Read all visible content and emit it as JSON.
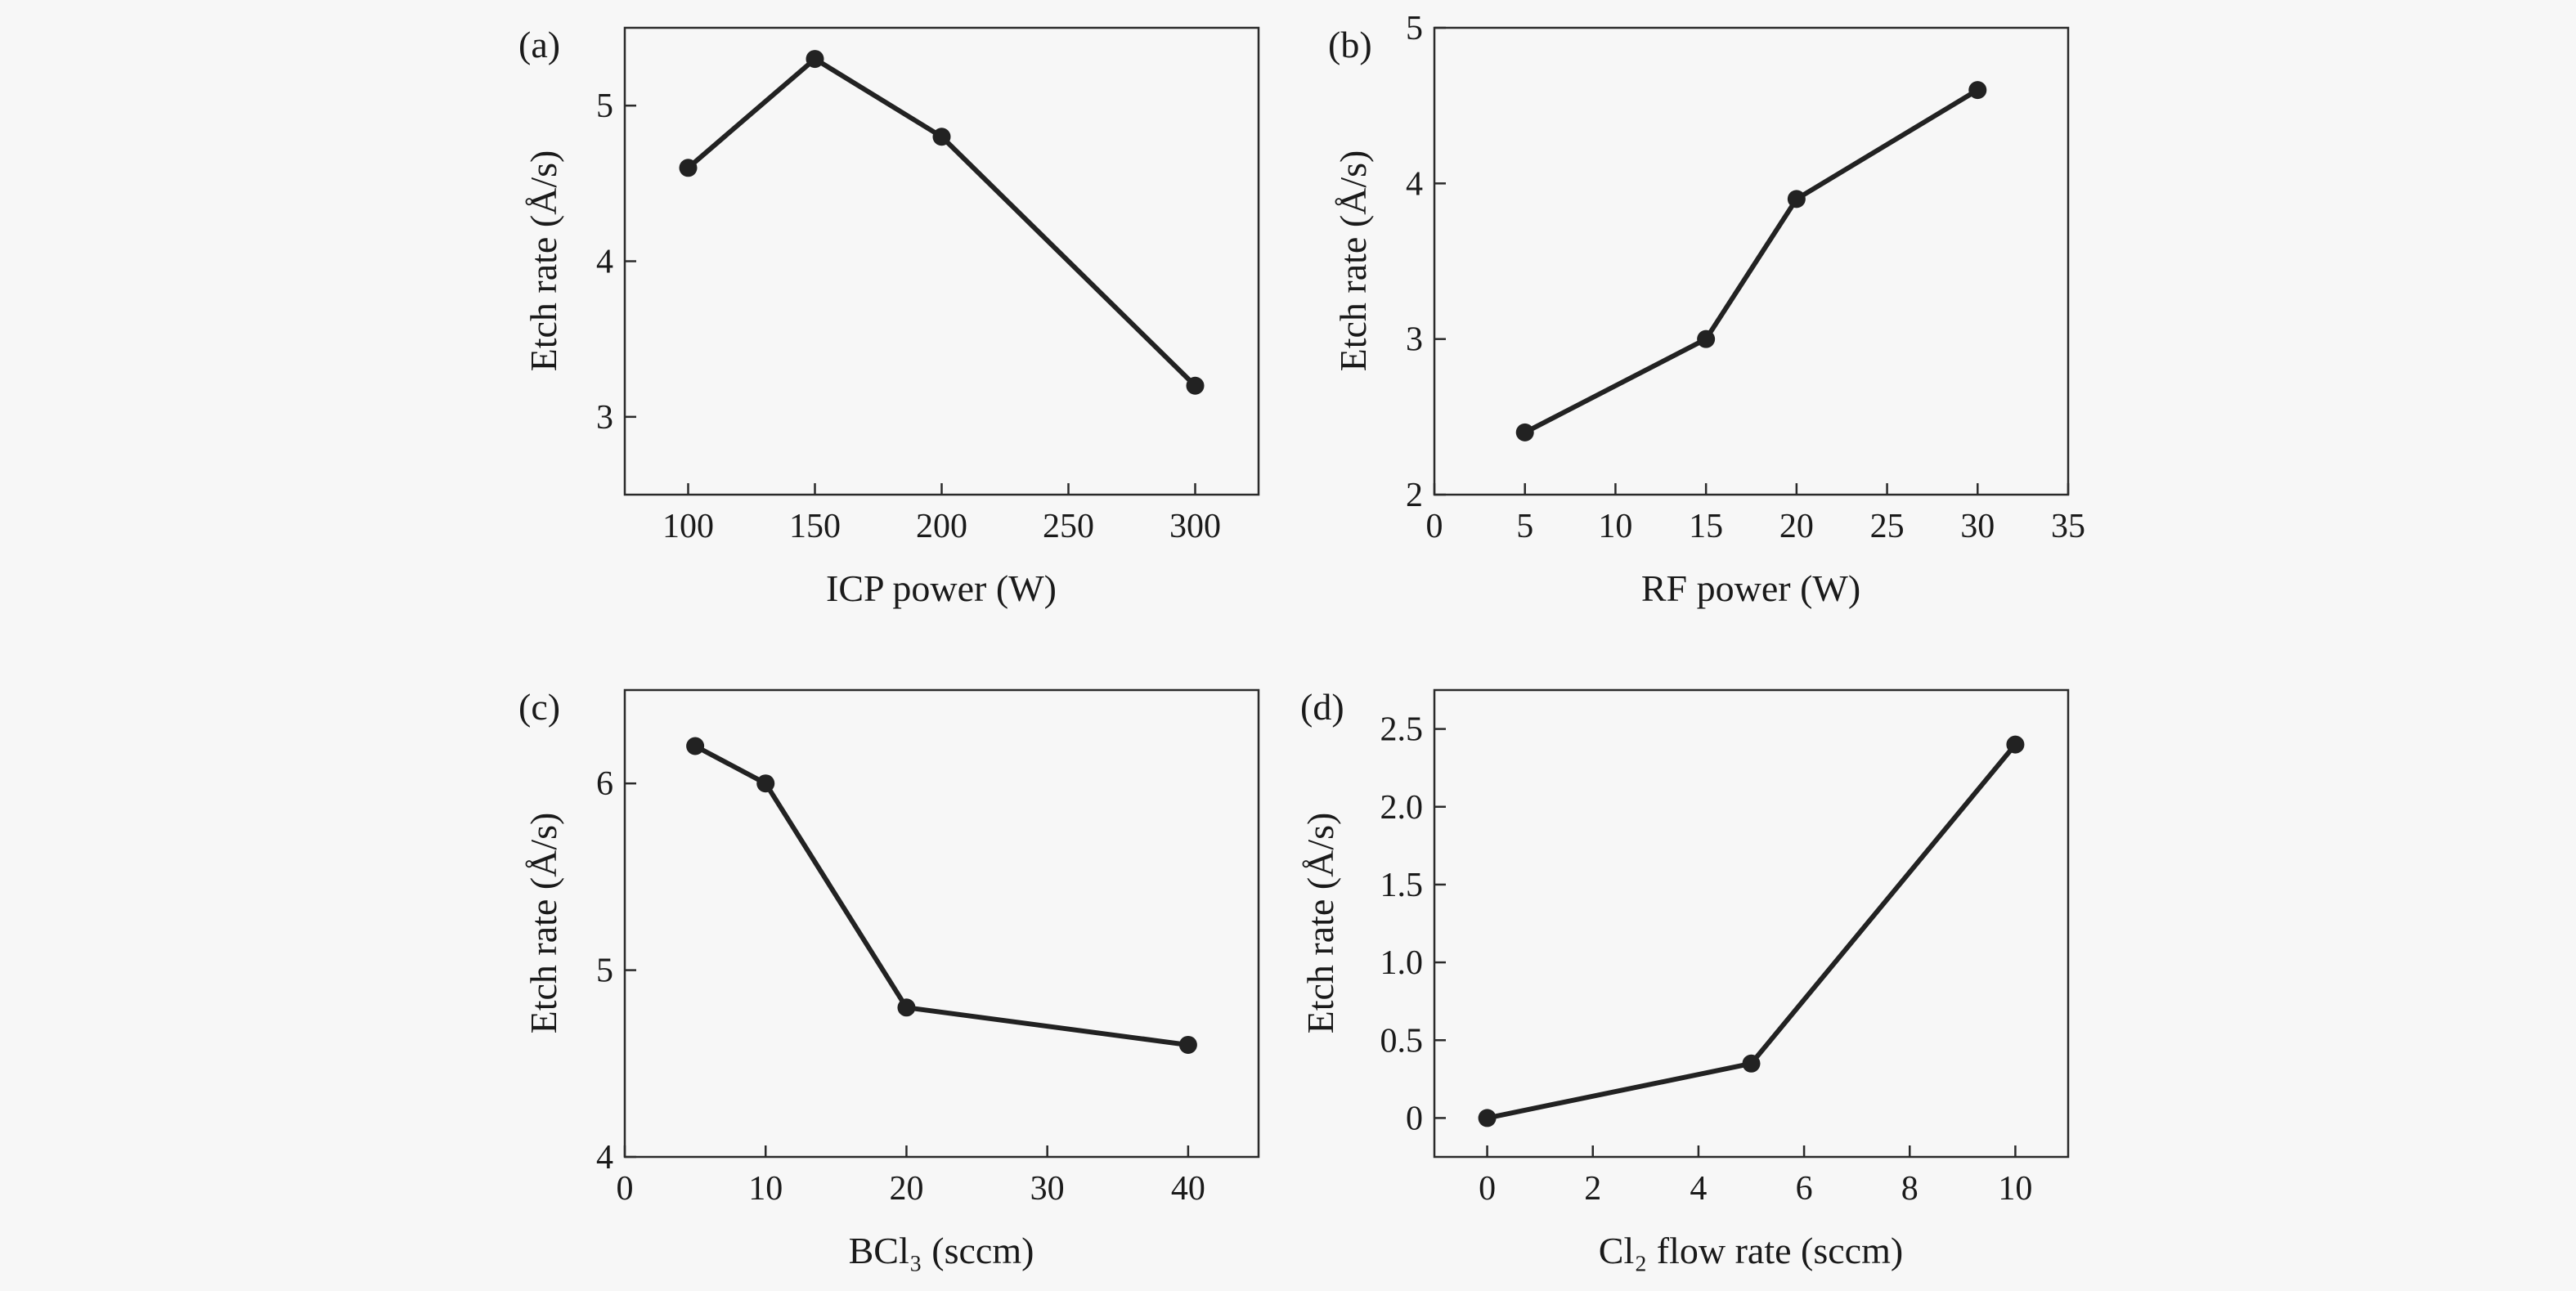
{
  "colors": {
    "background": "#f7f7f7",
    "line": "#222222",
    "axis": "#2a2a2a"
  },
  "chart_data": [
    {
      "panel": "(a)",
      "type": "line",
      "xlabel": "ICP power (W)",
      "ylabel": "Etch rate (Å/s)",
      "xlim": [
        75,
        325
      ],
      "ylim": [
        2.5,
        5.5
      ],
      "xticks": [
        "100",
        "150",
        "200",
        "250",
        "300"
      ],
      "yticks": [
        "3",
        "4",
        "5"
      ],
      "grid": false,
      "x": [
        100,
        150,
        200,
        300
      ],
      "values": [
        4.6,
        5.3,
        4.8,
        3.2
      ]
    },
    {
      "panel": "(b)",
      "type": "line",
      "xlabel": "RF power (W)",
      "ylabel": "Etch rate (Å/s)",
      "xlim": [
        0,
        35
      ],
      "ylim": [
        2,
        5
      ],
      "xticks": [
        "0",
        "5",
        "10",
        "15",
        "20",
        "25",
        "30",
        "35"
      ],
      "yticks": [
        "2",
        "3",
        "4",
        "5"
      ],
      "grid": false,
      "x": [
        5,
        15,
        20,
        30
      ],
      "values": [
        2.4,
        3.0,
        3.9,
        4.6
      ]
    },
    {
      "panel": "(c)",
      "type": "line",
      "xlabel": "BCl₃ (sccm)",
      "ylabel": "Etch rate (Å/s)",
      "xlim": [
        0,
        45
      ],
      "ylim": [
        4,
        6.5
      ],
      "xticks": [
        "0",
        "10",
        "20",
        "30",
        "40"
      ],
      "yticks": [
        "4",
        "5",
        "6"
      ],
      "grid": false,
      "x": [
        5,
        10,
        20,
        40
      ],
      "values": [
        6.2,
        6.0,
        4.8,
        4.6
      ]
    },
    {
      "panel": "(d)",
      "type": "line",
      "xlabel": "Cl₂ flow rate (sccm)",
      "ylabel": "Etch rate (Å/s)",
      "xlim": [
        -1,
        11
      ],
      "ylim": [
        -0.25,
        2.75
      ],
      "xticks": [
        "0",
        "2",
        "4",
        "6",
        "8",
        "10"
      ],
      "yticks": [
        "0",
        "0.5",
        "1.0",
        "1.5",
        "2.0",
        "2.5"
      ],
      "grid": false,
      "x": [
        0,
        5,
        10
      ],
      "values": [
        0,
        0.35,
        2.4
      ]
    }
  ]
}
